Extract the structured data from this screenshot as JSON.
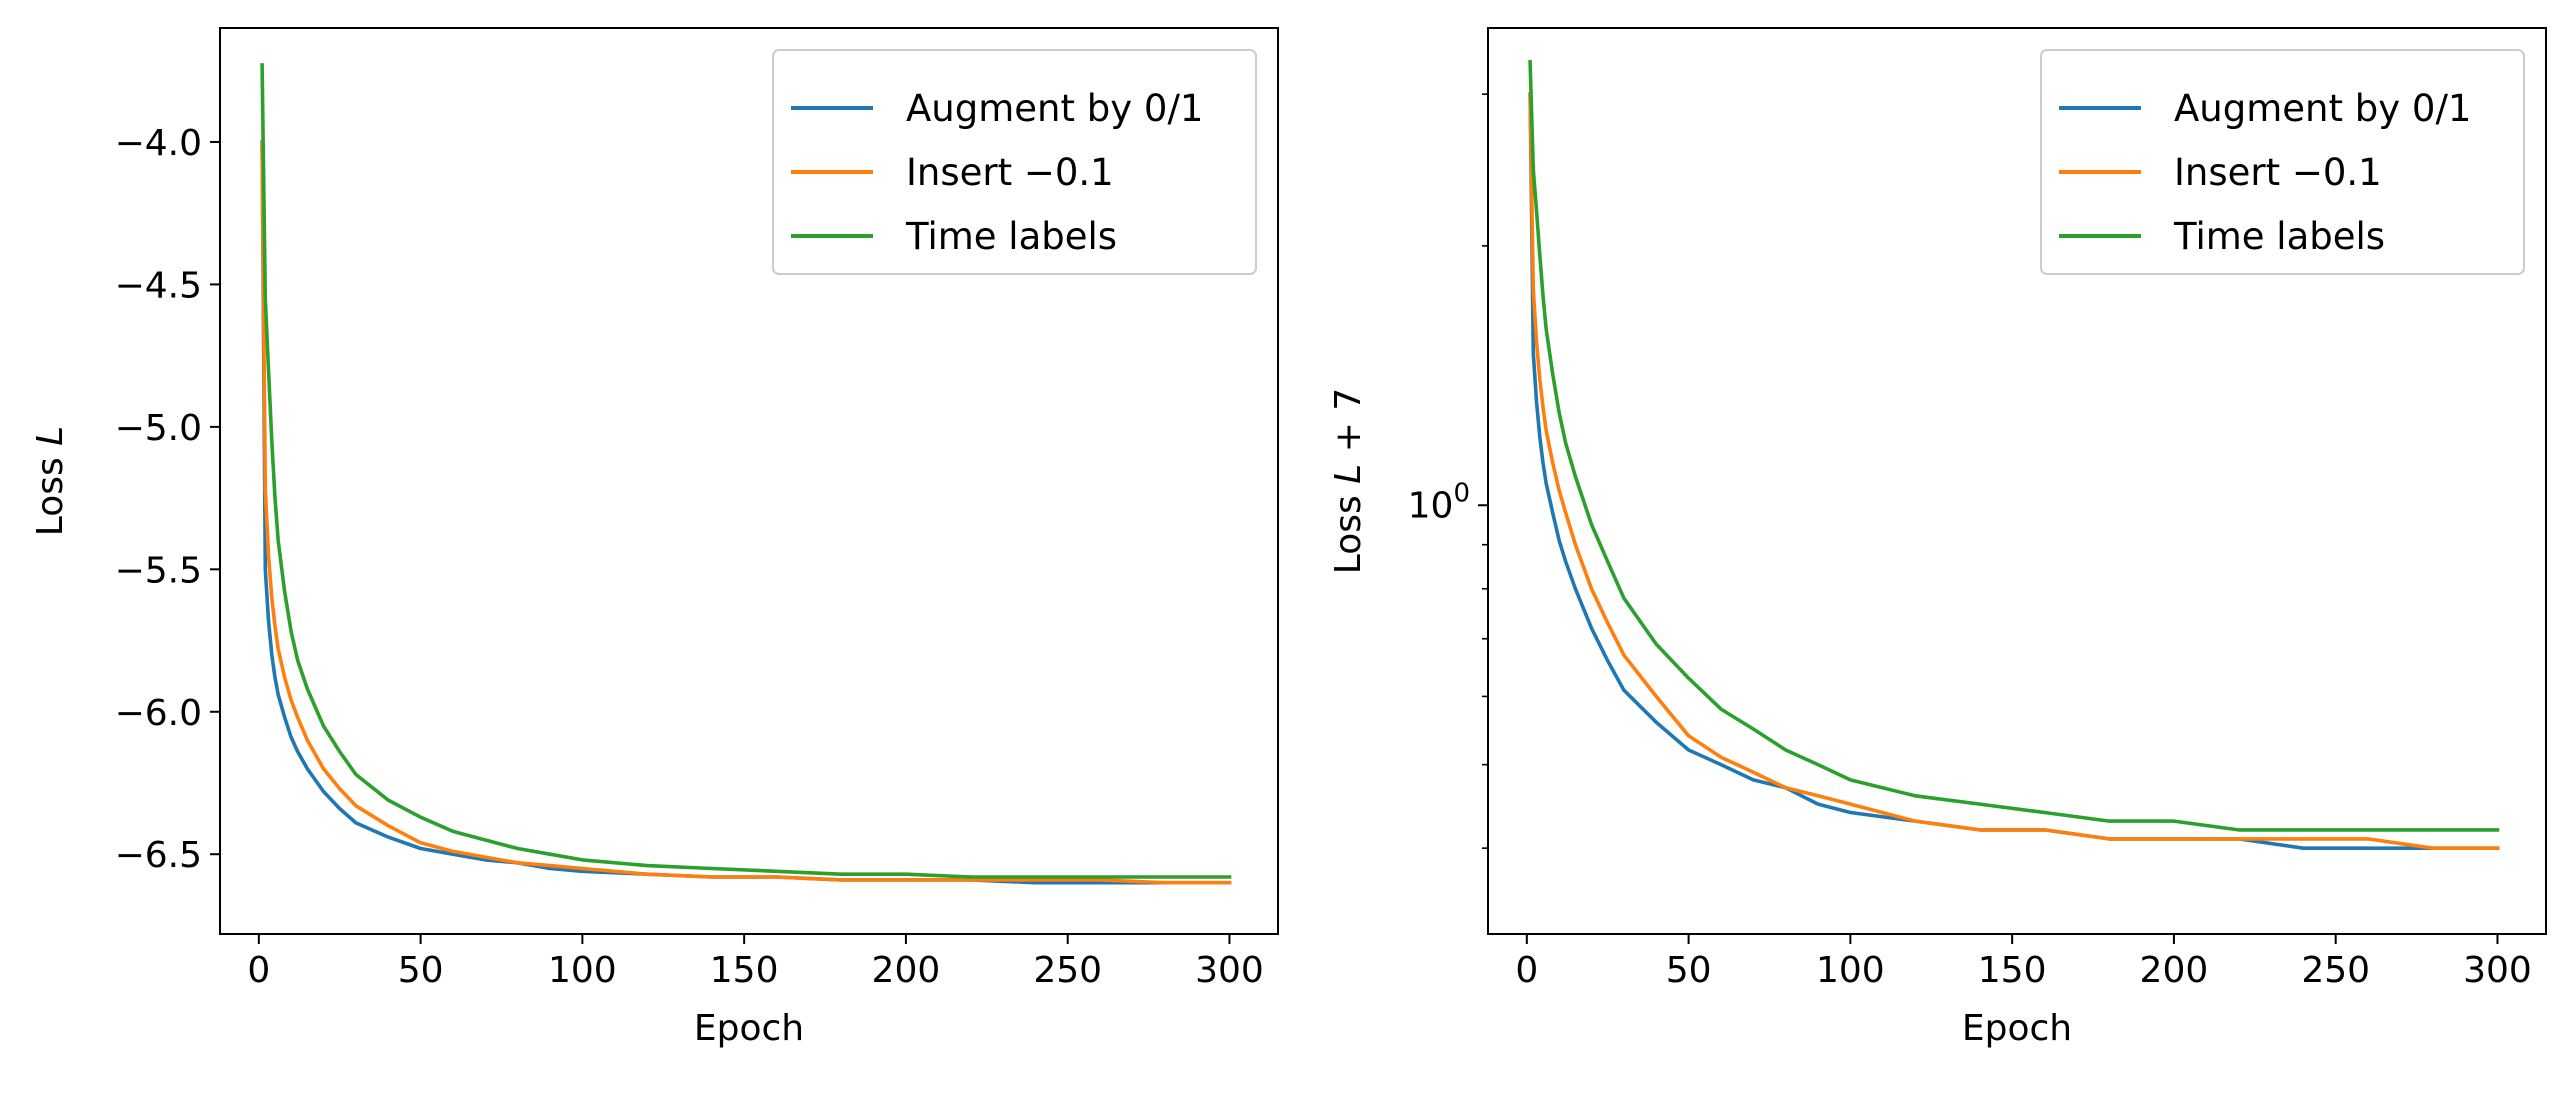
{
  "chart_data": [
    {
      "type": "line",
      "xlabel": "Epoch",
      "ylabel_prefix": "Loss ",
      "ylabel_var": "L",
      "ylabel_suffix": "",
      "yscale": "linear",
      "xlim": [
        -12,
        315
      ],
      "ylim": [
        -6.78,
        -3.6
      ],
      "x_ticks": [
        0,
        50,
        100,
        150,
        200,
        250,
        300
      ],
      "x_tick_labels": [
        "0",
        "50",
        "100",
        "150",
        "200",
        "250",
        "300"
      ],
      "y_ticks": [
        -4.0,
        -4.5,
        -5.0,
        -5.5,
        -6.0,
        -6.5
      ],
      "y_tick_labels": [
        "−4.0",
        "−4.5",
        "−5.0",
        "−5.5",
        "−6.0",
        "−6.5"
      ],
      "grid": false,
      "legend_position": "top-right",
      "series": [
        {
          "name": "Augment by 0/1",
          "color": "#1f77b4",
          "x": [
            1,
            2,
            3,
            4,
            5,
            6,
            8,
            10,
            12,
            15,
            20,
            25,
            30,
            40,
            50,
            60,
            70,
            80,
            90,
            100,
            120,
            140,
            160,
            180,
            200,
            220,
            240,
            260,
            280,
            300
          ],
          "y": [
            -4.0,
            -5.5,
            -5.68,
            -5.8,
            -5.88,
            -5.94,
            -6.02,
            -6.09,
            -6.14,
            -6.2,
            -6.28,
            -6.34,
            -6.39,
            -6.44,
            -6.48,
            -6.5,
            -6.52,
            -6.53,
            -6.55,
            -6.56,
            -6.57,
            -6.58,
            -6.58,
            -6.59,
            -6.59,
            -6.59,
            -6.6,
            -6.6,
            -6.6,
            -6.6
          ]
        },
        {
          "name": "Insert −0.1",
          "color": "#ff7f0e",
          "x": [
            1,
            2,
            3,
            4,
            5,
            6,
            8,
            10,
            12,
            15,
            20,
            25,
            30,
            40,
            50,
            60,
            70,
            80,
            90,
            100,
            120,
            140,
            160,
            180,
            200,
            220,
            240,
            260,
            280,
            300
          ],
          "y": [
            -4.0,
            -5.22,
            -5.45,
            -5.6,
            -5.7,
            -5.78,
            -5.88,
            -5.96,
            -6.02,
            -6.1,
            -6.2,
            -6.27,
            -6.33,
            -6.4,
            -6.46,
            -6.49,
            -6.51,
            -6.53,
            -6.54,
            -6.55,
            -6.57,
            -6.58,
            -6.58,
            -6.59,
            -6.59,
            -6.59,
            -6.59,
            -6.59,
            -6.6,
            -6.6
          ]
        },
        {
          "name": "Time labels",
          "color": "#2ca02c",
          "x": [
            1,
            2,
            3,
            4,
            5,
            6,
            8,
            10,
            12,
            15,
            20,
            25,
            30,
            40,
            50,
            60,
            70,
            80,
            90,
            100,
            120,
            140,
            160,
            180,
            200,
            220,
            240,
            260,
            280,
            300
          ],
          "y": [
            -3.73,
            -4.55,
            -4.8,
            -5.05,
            -5.25,
            -5.4,
            -5.58,
            -5.72,
            -5.82,
            -5.92,
            -6.05,
            -6.14,
            -6.22,
            -6.31,
            -6.37,
            -6.42,
            -6.45,
            -6.48,
            -6.5,
            -6.52,
            -6.54,
            -6.55,
            -6.56,
            -6.57,
            -6.57,
            -6.58,
            -6.58,
            -6.58,
            -6.58,
            -6.58
          ]
        }
      ]
    },
    {
      "type": "line",
      "xlabel": "Epoch",
      "ylabel_prefix": "Loss ",
      "ylabel_var": "L",
      "ylabel_suffix": " + 7",
      "yscale": "log",
      "xlim": [
        -12,
        315
      ],
      "ylim": [
        0.318,
        3.58
      ],
      "x_ticks": [
        0,
        50,
        100,
        150,
        200,
        250,
        300
      ],
      "x_tick_labels": [
        "0",
        "50",
        "100",
        "150",
        "200",
        "250",
        "300"
      ],
      "y_major_ticks": [
        1
      ],
      "y_major_tick_base": "10",
      "y_major_tick_exp": "0",
      "y_minor_ticks": [
        0.4,
        0.5,
        0.6,
        0.7,
        0.8,
        0.9,
        2,
        3
      ],
      "grid": false,
      "legend_position": "top-right",
      "series": [
        {
          "name": "Augment by 0/1",
          "color": "#1f77b4",
          "x": [
            1,
            2,
            3,
            4,
            5,
            6,
            8,
            10,
            12,
            15,
            20,
            25,
            30,
            40,
            50,
            60,
            70,
            80,
            90,
            100,
            120,
            140,
            160,
            180,
            200,
            220,
            240,
            260,
            280,
            300
          ],
          "y": [
            3.0,
            1.5,
            1.32,
            1.2,
            1.12,
            1.06,
            0.98,
            0.91,
            0.86,
            0.8,
            0.72,
            0.66,
            0.61,
            0.56,
            0.52,
            0.5,
            0.48,
            0.47,
            0.45,
            0.44,
            0.43,
            0.42,
            0.42,
            0.41,
            0.41,
            0.41,
            0.4,
            0.4,
            0.4,
            0.4
          ]
        },
        {
          "name": "Insert −0.1",
          "color": "#ff7f0e",
          "x": [
            1,
            2,
            3,
            4,
            5,
            6,
            8,
            10,
            12,
            15,
            20,
            25,
            30,
            40,
            50,
            60,
            70,
            80,
            90,
            100,
            120,
            140,
            160,
            180,
            200,
            220,
            240,
            260,
            280,
            300
          ],
          "y": [
            3.0,
            1.78,
            1.55,
            1.4,
            1.3,
            1.22,
            1.12,
            1.04,
            0.98,
            0.9,
            0.8,
            0.73,
            0.67,
            0.6,
            0.54,
            0.51,
            0.49,
            0.47,
            0.46,
            0.45,
            0.43,
            0.42,
            0.42,
            0.41,
            0.41,
            0.41,
            0.41,
            0.41,
            0.4,
            0.4
          ]
        },
        {
          "name": "Time labels",
          "color": "#2ca02c",
          "x": [
            1,
            2,
            3,
            4,
            5,
            6,
            8,
            10,
            12,
            15,
            20,
            25,
            30,
            40,
            50,
            60,
            70,
            80,
            90,
            100,
            120,
            140,
            160,
            180,
            200,
            220,
            240,
            260,
            280,
            300
          ],
          "y": [
            3.27,
            2.45,
            2.2,
            1.95,
            1.75,
            1.6,
            1.42,
            1.28,
            1.18,
            1.08,
            0.95,
            0.86,
            0.78,
            0.69,
            0.63,
            0.58,
            0.55,
            0.52,
            0.5,
            0.48,
            0.46,
            0.45,
            0.44,
            0.43,
            0.43,
            0.42,
            0.42,
            0.42,
            0.42,
            0.42
          ]
        }
      ]
    }
  ]
}
